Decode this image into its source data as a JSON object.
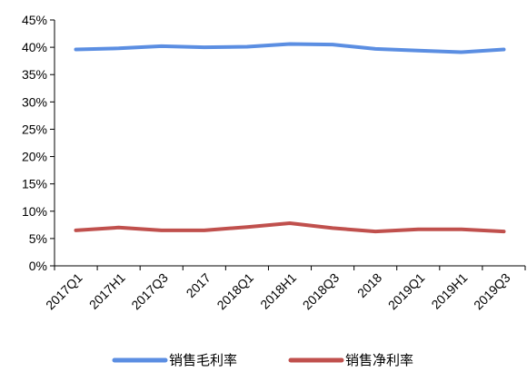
{
  "chart_data": {
    "type": "line",
    "categories": [
      "2017Q1",
      "2017H1",
      "2017Q3",
      "2017",
      "2018Q1",
      "2018H1",
      "2018Q3",
      "2018",
      "2019Q1",
      "2019H1",
      "2019Q3"
    ],
    "series": [
      {
        "name": "销售毛利率",
        "color": "#5b8ee2",
        "values": [
          39.6,
          39.8,
          40.2,
          40.0,
          40.1,
          40.6,
          40.5,
          39.7,
          39.4,
          39.1,
          39.6
        ]
      },
      {
        "name": "销售净利率",
        "color": "#c0504d",
        "values": [
          6.5,
          7.0,
          6.5,
          6.5,
          7.1,
          7.8,
          6.9,
          6.3,
          6.7,
          6.7,
          6.3
        ]
      }
    ],
    "ylim": [
      0,
      45
    ],
    "ytick_step": 5,
    "ytick_format": "percent",
    "y_tick_labels": [
      "0%",
      "5%",
      "10%",
      "15%",
      "20%",
      "25%",
      "30%",
      "35%",
      "40%",
      "45%"
    ],
    "grid": false,
    "legend_position": "bottom"
  }
}
